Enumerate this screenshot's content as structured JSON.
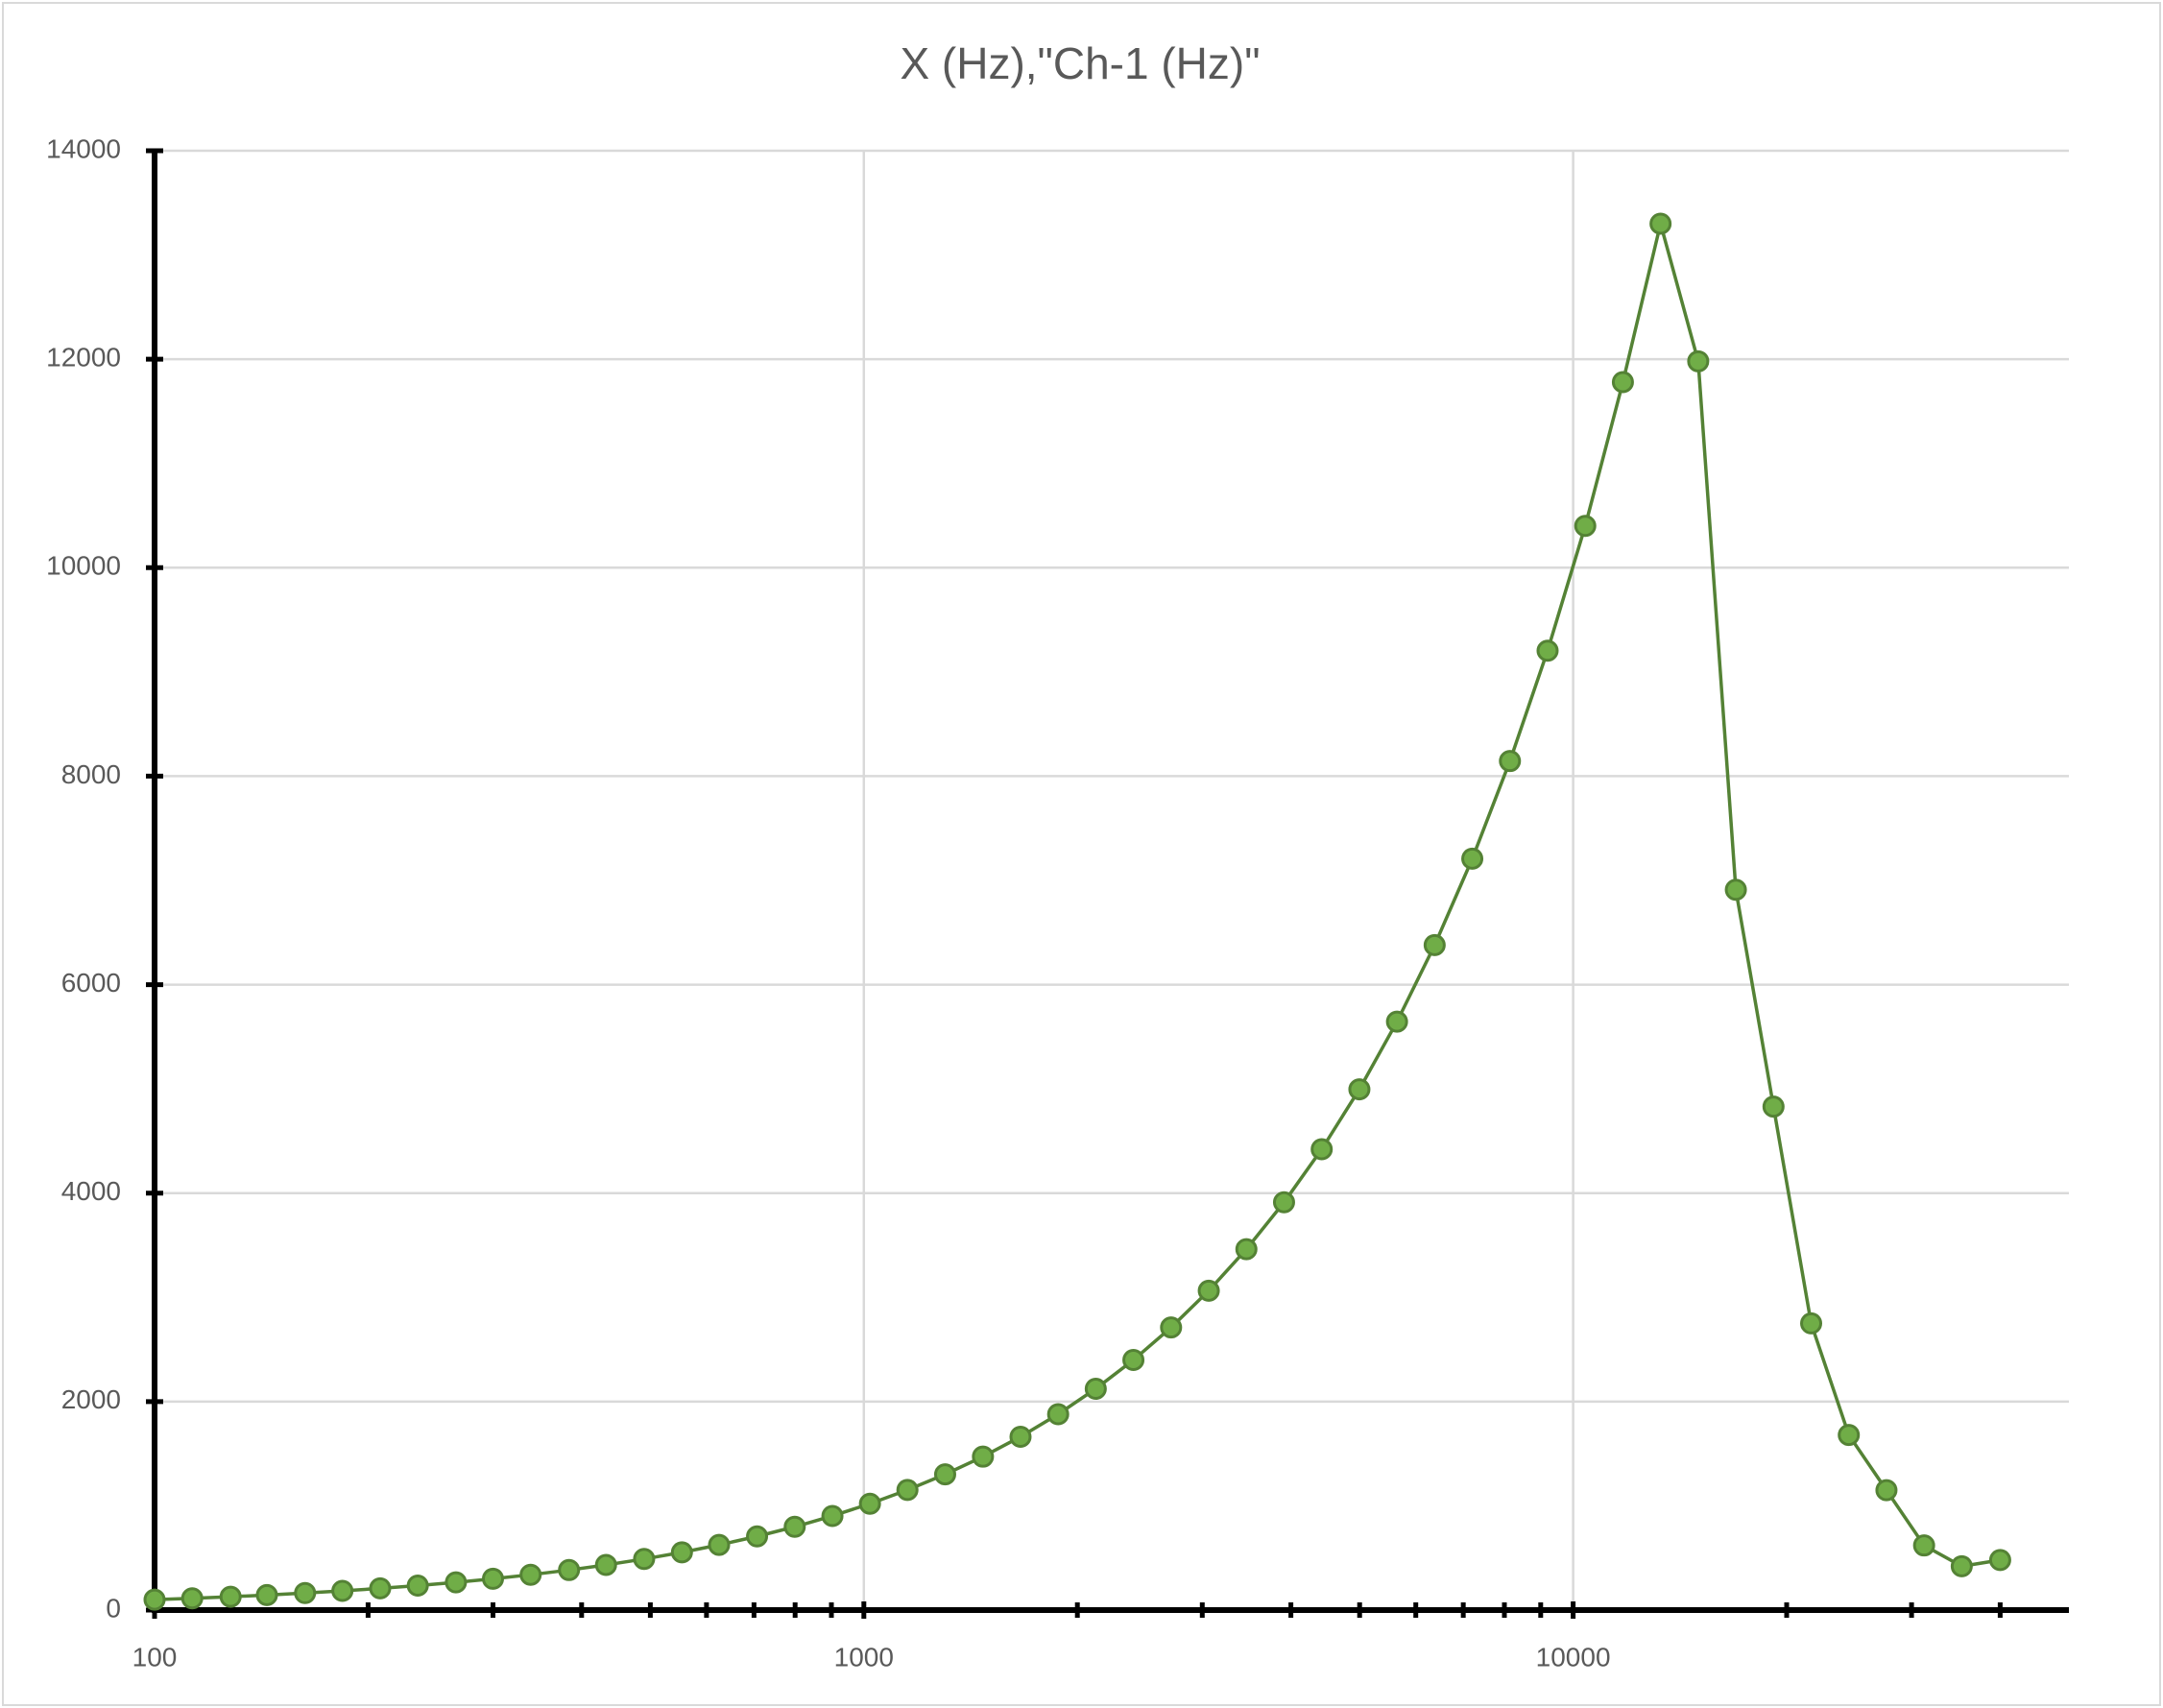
{
  "chart_data": {
    "type": "line",
    "title": "X (Hz),\"Ch-1 (Hz)\"",
    "x": [
      100,
      113,
      128,
      144,
      163,
      184,
      208,
      235,
      266,
      300,
      339,
      384,
      433,
      490,
      554,
      625,
      707,
      799,
      903,
      1020,
      1152,
      1302,
      1472,
      1663,
      1879,
      2123,
      2399,
      2711,
      3064,
      3462,
      3912,
      4421,
      4996,
      5645,
      6379,
      7208,
      8145,
      9204,
      10401,
      11753,
      13281,
      15008,
      16959,
      19164,
      21655,
      24470,
      27651,
      31246,
      35308,
      40000
    ],
    "series": [
      {
        "name": "Ch-1 (Hz)",
        "color": "#548235",
        "marker_color": "#70ad47",
        "values": [
          100,
          113,
          128,
          144,
          163,
          184,
          208,
          235,
          266,
          300,
          339,
          384,
          433,
          490,
          554,
          625,
          707,
          799,
          903,
          1020,
          1152,
          1302,
          1472,
          1663,
          1879,
          2123,
          2399,
          2711,
          3064,
          3462,
          3912,
          4421,
          4996,
          5645,
          6379,
          7208,
          8145,
          9204,
          10401,
          11780,
          13300,
          11980,
          6910,
          4830,
          2750,
          1680,
          1150,
          620,
          420,
          480
        ]
      }
    ],
    "xlim": [
      100,
      50000
    ],
    "x_log": true,
    "xticks": [
      100,
      1000,
      10000
    ],
    "xminor_ticks": [
      200,
      300,
      400,
      500,
      600,
      700,
      800,
      900,
      2000,
      3000,
      4000,
      5000,
      6000,
      7000,
      8000,
      9000,
      20000,
      30000,
      40000
    ],
    "ylim": [
      0,
      14000
    ],
    "yticks": [
      0,
      2000,
      4000,
      6000,
      8000,
      10000,
      12000,
      14000
    ],
    "grid": true
  }
}
